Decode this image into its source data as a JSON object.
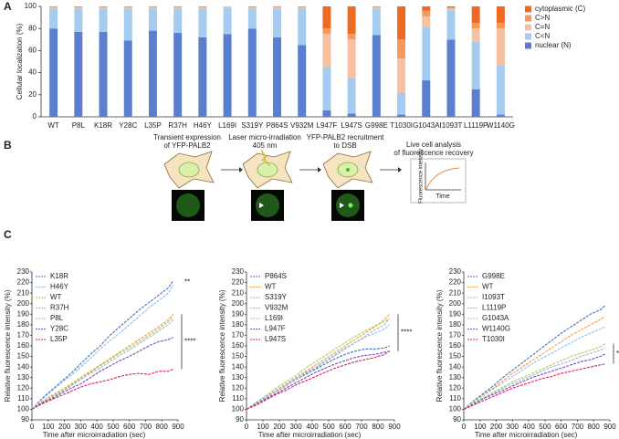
{
  "panels": [
    "A",
    "B",
    "C"
  ],
  "diagram": {
    "steps": [
      "Transient expression",
      "of YFP-PALB2",
      "Laser micro-irradiation",
      "405 nm",
      "YFP-PALB2 recruitment",
      "to DSB",
      "Live cell analysis",
      "of fluorescence recovery"
    ],
    "plot_ylabel": "Fluorescence intensity",
    "plot_xlabel": "Time"
  },
  "chart_data": [
    {
      "type": "bar",
      "stacked": true,
      "ylabel": "Cellular localization (%)",
      "categories": [
        "WT",
        "P8L",
        "K18R",
        "Y28C",
        "L35P",
        "R37H",
        "H46Y",
        "L169I",
        "S319Y",
        "P864S",
        "V932M",
        "L947F",
        "L947S",
        "G998E",
        "T1030I",
        "G1043A",
        "I1093T",
        "L1119P",
        "W1140G"
      ],
      "ylim": [
        0,
        100
      ],
      "yticks": [
        0,
        20,
        40,
        60,
        80,
        100
      ],
      "series": [
        {
          "name": "nuclear (N)",
          "color": "#5b7fcf",
          "values": [
            80,
            77,
            77,
            69,
            78,
            76,
            72,
            75,
            80,
            72,
            65,
            6,
            3,
            74,
            2,
            33,
            70,
            25,
            2
          ]
        },
        {
          "name": "C<N",
          "color": "#a6cbf0",
          "values": [
            18,
            21,
            21,
            29,
            20,
            22,
            26,
            24,
            18,
            26,
            33,
            39,
            32,
            24,
            20,
            48,
            27,
            43,
            45
          ]
        },
        {
          "name": "C=N",
          "color": "#f7c1a0",
          "values": [
            1,
            1,
            1,
            1,
            1,
            1,
            1,
            1,
            1,
            1,
            1,
            30,
            35,
            1,
            31,
            10,
            1,
            12,
            33
          ]
        },
        {
          "name": "C>N",
          "color": "#f39a5c",
          "values": [
            1,
            1,
            1,
            1,
            1,
            1,
            1,
            0,
            1,
            1,
            1,
            5,
            5,
            1,
            17,
            5,
            1,
            5,
            5
          ]
        },
        {
          "name": "cytoplasmic (C)",
          "color": "#ee6a22",
          "values": [
            0,
            0,
            0,
            0,
            0,
            0,
            0,
            0,
            0,
            0,
            0,
            20,
            25,
            0,
            30,
            4,
            1,
            15,
            15
          ]
        }
      ]
    },
    {
      "type": "line",
      "ylabel": "Relative fluorescence intensity (%)",
      "xlabel": "Time after microirradiation (sec)",
      "x": [
        0,
        60,
        120,
        180,
        240,
        300,
        360,
        420,
        480,
        540,
        600,
        660,
        720,
        780,
        840,
        870
      ],
      "xlim": [
        0,
        900
      ],
      "xticks": [
        0,
        100,
        200,
        300,
        400,
        500,
        600,
        700,
        800,
        900
      ],
      "ylim": [
        90,
        230
      ],
      "yticks": [
        90,
        100,
        110,
        120,
        130,
        140,
        150,
        160,
        170,
        180,
        190,
        200,
        210,
        220,
        230
      ],
      "annotations": [
        "**",
        "****"
      ],
      "series": [
        {
          "name": "K18R",
          "color": "#4a6fc0",
          "values": [
            100,
            110,
            118,
            126,
            134,
            143,
            152,
            160,
            170,
            178,
            186,
            194,
            201,
            208,
            215,
            222
          ]
        },
        {
          "name": "H46Y",
          "color": "#8fbfe8",
          "values": [
            100,
            109,
            117,
            125,
            132,
            140,
            148,
            157,
            165,
            172,
            180,
            188,
            196,
            203,
            210,
            218
          ]
        },
        {
          "name": "WT",
          "color": "#f0a040",
          "values": [
            100,
            107,
            113,
            118,
            124,
            130,
            136,
            142,
            148,
            154,
            160,
            166,
            172,
            178,
            185,
            190
          ]
        },
        {
          "name": "R37H",
          "color": "#a8d060",
          "values": [
            100,
            106,
            112,
            117,
            123,
            129,
            135,
            141,
            147,
            153,
            158,
            164,
            170,
            176,
            183,
            188
          ]
        },
        {
          "name": "P8L",
          "color": "#aab3cc",
          "values": [
            100,
            106,
            111,
            116,
            122,
            128,
            134,
            139,
            145,
            151,
            156,
            162,
            168,
            174,
            180,
            185
          ]
        },
        {
          "name": "Y28C",
          "color": "#7050c0",
          "values": [
            100,
            106,
            110,
            115,
            120,
            124,
            130,
            136,
            141,
            146,
            150,
            155,
            160,
            164,
            166,
            168
          ]
        },
        {
          "name": "L35P",
          "color": "#e0205a",
          "values": [
            100,
            105,
            109,
            113,
            117,
            121,
            124,
            126,
            128,
            131,
            133,
            134,
            133,
            136,
            136,
            138
          ]
        }
      ]
    },
    {
      "type": "line",
      "ylabel": "Relative fluorescence intensity (%)",
      "xlabel": "Time after microirradiation (sec)",
      "x": [
        0,
        60,
        120,
        180,
        240,
        300,
        360,
        420,
        480,
        540,
        600,
        660,
        720,
        780,
        840,
        870
      ],
      "xlim": [
        0,
        900
      ],
      "xticks": [
        0,
        100,
        200,
        300,
        400,
        500,
        600,
        700,
        800,
        900
      ],
      "ylim": [
        90,
        230
      ],
      "yticks": [
        90,
        100,
        110,
        120,
        130,
        140,
        150,
        160,
        170,
        180,
        190,
        200,
        210,
        220,
        230
      ],
      "annotations": [
        "****"
      ],
      "series": [
        {
          "name": "P864S",
          "color": "#4a6fc0",
          "values": [
            100,
            106,
            111,
            117,
            122,
            128,
            133,
            138,
            143,
            148,
            152,
            155,
            157,
            157,
            158,
            160
          ]
        },
        {
          "name": "WT",
          "color": "#f0a040",
          "values": [
            100,
            106,
            112,
            118,
            124,
            130,
            136,
            142,
            148,
            154,
            160,
            166,
            172,
            178,
            185,
            190
          ]
        },
        {
          "name": "S319Y",
          "color": "#aab3cc",
          "values": [
            100,
            106,
            111,
            117,
            122,
            128,
            134,
            139,
            145,
            151,
            157,
            163,
            169,
            175,
            180,
            186
          ]
        },
        {
          "name": "V932M",
          "color": "#a8d060",
          "values": [
            100,
            107,
            113,
            120,
            126,
            132,
            139,
            145,
            151,
            157,
            163,
            169,
            174,
            179,
            183,
            186
          ]
        },
        {
          "name": "L169I",
          "color": "#8fbfe8",
          "values": [
            100,
            106,
            112,
            117,
            123,
            129,
            135,
            140,
            146,
            152,
            158,
            163,
            168,
            172,
            176,
            180
          ]
        },
        {
          "name": "L947F",
          "color": "#7050c0",
          "values": [
            100,
            105,
            110,
            115,
            120,
            125,
            130,
            135,
            139,
            143,
            146,
            149,
            151,
            152,
            154,
            155
          ]
        },
        {
          "name": "L947S",
          "color": "#e0205a",
          "values": [
            100,
            104,
            109,
            114,
            118,
            123,
            127,
            131,
            135,
            139,
            142,
            145,
            147,
            149,
            152,
            155
          ]
        }
      ]
    },
    {
      "type": "line",
      "ylabel": "Relative fluorescence intensity (%)",
      "xlabel": "Time after microirradiation (sec)",
      "x": [
        0,
        60,
        120,
        180,
        240,
        300,
        360,
        420,
        480,
        540,
        600,
        660,
        720,
        780,
        840,
        870
      ],
      "xlim": [
        0,
        900
      ],
      "xticks": [
        0,
        100,
        200,
        300,
        400,
        500,
        600,
        700,
        800,
        900
      ],
      "ylim": [
        90,
        230
      ],
      "yticks": [
        90,
        100,
        110,
        120,
        130,
        140,
        150,
        160,
        170,
        180,
        190,
        200,
        210,
        220,
        230
      ],
      "annotations": [
        "*"
      ],
      "series": [
        {
          "name": "G998E",
          "color": "#4a6fc0",
          "values": [
            100,
            108,
            115,
            122,
            130,
            137,
            144,
            151,
            158,
            165,
            172,
            178,
            184,
            190,
            194,
            198
          ]
        },
        {
          "name": "WT",
          "color": "#f0a040",
          "values": [
            100,
            107,
            114,
            120,
            127,
            134,
            140,
            146,
            152,
            158,
            164,
            170,
            175,
            180,
            185,
            188
          ]
        },
        {
          "name": "I1093T",
          "color": "#8fbfe8",
          "values": [
            100,
            107,
            113,
            119,
            125,
            131,
            137,
            143,
            148,
            153,
            158,
            163,
            168,
            172,
            176,
            178
          ]
        },
        {
          "name": "L1119P",
          "color": "#a8d060",
          "values": [
            100,
            106,
            111,
            116,
            121,
            126,
            130,
            134,
            138,
            142,
            146,
            150,
            153,
            156,
            159,
            162
          ]
        },
        {
          "name": "G1043A",
          "color": "#aab3cc",
          "values": [
            100,
            105,
            110,
            115,
            120,
            124,
            128,
            132,
            136,
            140,
            143,
            146,
            150,
            153,
            156,
            158
          ]
        },
        {
          "name": "W1140G",
          "color": "#7050c0",
          "values": [
            100,
            105,
            110,
            114,
            118,
            122,
            126,
            130,
            133,
            136,
            139,
            142,
            145,
            147,
            150,
            152
          ]
        },
        {
          "name": "T1030I",
          "color": "#e0205a",
          "values": [
            100,
            104,
            108,
            112,
            116,
            120,
            123,
            126,
            129,
            131,
            134,
            136,
            138,
            140,
            142,
            143
          ]
        }
      ]
    }
  ]
}
